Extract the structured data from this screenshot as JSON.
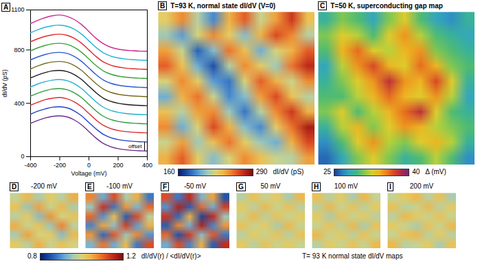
{
  "chart_data": [
    {
      "panel": "A",
      "type": "line",
      "xlabel": "Voltage (mV)",
      "ylabel": "dI/dV (pS)",
      "x": [
        -400,
        -350,
        -300,
        -250,
        -200,
        -150,
        -100,
        -50,
        0,
        50,
        100,
        150,
        200,
        250,
        300,
        350,
        400
      ],
      "xlim": [
        -400,
        400
      ],
      "xticks": [
        -400,
        -200,
        0,
        200,
        400
      ],
      "ylim": [
        0,
        1100
      ],
      "yticks": [
        0,
        400,
        800,
        1100
      ],
      "annotations": [
        "offset"
      ],
      "series": [
        {
          "color": "#6b2d8f",
          "values": [
            250,
            272,
            290,
            302,
            306,
            298,
            275,
            238,
            188,
            138,
            98,
            74,
            60,
            52,
            47,
            44,
            42
          ]
        },
        {
          "color": "#2340c8",
          "values": [
            318,
            341,
            358,
            371,
            374,
            366,
            343,
            306,
            256,
            207,
            166,
            142,
            128,
            120,
            115,
            112,
            110
          ]
        },
        {
          "color": "#d8282a",
          "values": [
            386,
            408,
            427,
            438,
            443,
            434,
            411,
            374,
            324,
            274,
            234,
            210,
            196,
            188,
            183,
            180,
            178
          ]
        },
        {
          "color": "#2e9a3a",
          "values": [
            454,
            476,
            494,
            507,
            510,
            502,
            479,
            442,
            392,
            342,
            302,
            278,
            264,
            256,
            251,
            248,
            246
          ]
        },
        {
          "color": "#20b0d0",
          "values": [
            522,
            545,
            562,
            574,
            578,
            570,
            547,
            510,
            460,
            410,
            370,
            346,
            332,
            324,
            319,
            316,
            314
          ]
        },
        {
          "color": "#1a1a1a",
          "values": [
            590,
            612,
            630,
            643,
            646,
            638,
            615,
            578,
            528,
            478,
            438,
            414,
            400,
            392,
            387,
            384,
            382
          ]
        },
        {
          "color": "#7a6a20",
          "values": [
            658,
            680,
            699,
            710,
            714,
            706,
            683,
            646,
            596,
            546,
            506,
            482,
            468,
            460,
            455,
            452,
            450
          ]
        },
        {
          "color": "#2a5ad8",
          "values": [
            726,
            748,
            766,
            778,
            782,
            774,
            751,
            714,
            664,
            614,
            574,
            550,
            536,
            528,
            523,
            520,
            518
          ]
        },
        {
          "color": "#36a336",
          "values": [
            794,
            816,
            834,
            846,
            850,
            842,
            819,
            782,
            732,
            682,
            642,
            618,
            604,
            596,
            591,
            588,
            586
          ]
        },
        {
          "color": "#e02a2a",
          "values": [
            862,
            884,
            902,
            914,
            918,
            910,
            887,
            850,
            800,
            750,
            710,
            686,
            672,
            664,
            659,
            656,
            654
          ]
        },
        {
          "color": "#1fb5d8",
          "values": [
            930,
            952,
            970,
            982,
            986,
            978,
            955,
            918,
            868,
            818,
            778,
            754,
            740,
            732,
            727,
            724,
            722
          ]
        },
        {
          "color": "#d0288f",
          "values": [
            998,
            1022,
            1042,
            1056,
            1062,
            1052,
            1028,
            990,
            938,
            886,
            846,
            820,
            806,
            798,
            794,
            791,
            790
          ]
        }
      ]
    },
    {
      "panel": "B",
      "type": "heatmap",
      "title": "T=93 K, normal state dI/dV (V=0)",
      "cells": [
        [
          230,
          250,
          215,
          190,
          240,
          260,
          220,
          245,
          270,
          235
        ],
        [
          210,
          195,
          225,
          250,
          230,
          205,
          240,
          265,
          250,
          215
        ],
        [
          245,
          220,
          180,
          205,
          255,
          235,
          200,
          225,
          240,
          260
        ],
        [
          260,
          235,
          200,
          175,
          215,
          250,
          230,
          210,
          255,
          275
        ],
        [
          225,
          250,
          230,
          195,
          185,
          225,
          260,
          240,
          220,
          250
        ],
        [
          200,
          240,
          255,
          220,
          190,
          205,
          245,
          265,
          235,
          215
        ],
        [
          235,
          215,
          245,
          250,
          210,
          185,
          215,
          250,
          270,
          240
        ],
        [
          250,
          200,
          225,
          265,
          240,
          205,
          190,
          230,
          255,
          280
        ],
        [
          220,
          245,
          210,
          235,
          255,
          230,
          210,
          200,
          240,
          265
        ],
        [
          240,
          260,
          230,
          205,
          225,
          250,
          235,
          220,
          215,
          245
        ]
      ],
      "colorbar": {
        "label": "dI/dV (pS)",
        "range": [
          160,
          290
        ],
        "ticks": [
          160,
          290
        ]
      }
    },
    {
      "panel": "C",
      "type": "heatmap",
      "title": "T=50 K, superconducting gap map",
      "cells": [
        [
          29,
          31,
          30,
          28,
          31,
          33,
          30,
          28,
          27,
          29
        ],
        [
          31,
          33,
          32,
          30,
          33,
          35,
          32,
          30,
          29,
          28
        ],
        [
          30,
          34,
          36,
          33,
          32,
          34,
          35,
          31,
          30,
          29
        ],
        [
          28,
          32,
          35,
          37,
          34,
          33,
          36,
          34,
          31,
          30
        ],
        [
          29,
          31,
          33,
          35,
          38,
          35,
          34,
          37,
          33,
          29
        ],
        [
          30,
          30,
          32,
          34,
          36,
          34,
          33,
          35,
          32,
          28
        ],
        [
          31,
          33,
          30,
          32,
          34,
          36,
          38,
          33,
          30,
          29
        ],
        [
          29,
          32,
          34,
          31,
          33,
          35,
          34,
          32,
          31,
          30
        ],
        [
          27,
          30,
          33,
          35,
          32,
          31,
          33,
          34,
          32,
          29
        ],
        [
          26,
          28,
          31,
          33,
          31,
          29,
          30,
          32,
          30,
          27
        ]
      ],
      "colorbar": {
        "label": "Δ (mV)",
        "range": [
          25,
          40
        ],
        "ticks": [
          25,
          40
        ]
      }
    },
    {
      "panel": "D",
      "type": "heatmap",
      "title": "-200 mV",
      "cells": [
        [
          0.98,
          1.04,
          0.96,
          1.02,
          0.97,
          1.05
        ],
        [
          1.03,
          0.95,
          1.06,
          0.98,
          1.04,
          0.96
        ],
        [
          0.97,
          1.02,
          0.94,
          1.07,
          0.99,
          1.03
        ],
        [
          1.05,
          0.98,
          1.03,
          0.95,
          1.08,
          0.97
        ],
        [
          0.96,
          1.06,
          0.99,
          1.02,
          0.94,
          1.04
        ],
        [
          1.02,
          0.97,
          1.05,
          0.98,
          1.03,
          0.99
        ]
      ]
    },
    {
      "panel": "E",
      "type": "heatmap",
      "title": "-100 mV",
      "cells": [
        [
          1.08,
          0.92,
          1.12,
          0.96,
          1.05,
          0.88
        ],
        [
          0.95,
          1.14,
          0.88,
          1.07,
          0.93,
          1.1
        ],
        [
          1.1,
          0.9,
          1.04,
          0.86,
          1.12,
          0.97
        ],
        [
          0.89,
          1.06,
          0.94,
          1.13,
          0.91,
          1.05
        ],
        [
          1.07,
          0.87,
          1.11,
          0.95,
          1.08,
          0.9
        ],
        [
          0.93,
          1.09,
          0.92,
          1.04,
          0.88,
          1.12
        ]
      ]
    },
    {
      "panel": "F",
      "type": "heatmap",
      "title": "-50 mV",
      "cells": [
        [
          1.12,
          0.88,
          1.15,
          0.93,
          1.06,
          0.85
        ],
        [
          0.9,
          1.16,
          0.86,
          1.1,
          0.92,
          1.13
        ],
        [
          1.14,
          0.87,
          1.05,
          0.84,
          1.15,
          0.95
        ],
        [
          0.86,
          1.08,
          0.92,
          1.16,
          0.89,
          1.07
        ],
        [
          1.1,
          0.85,
          1.13,
          0.94,
          1.11,
          0.88
        ],
        [
          0.92,
          1.12,
          0.89,
          1.05,
          0.86,
          1.15
        ]
      ]
    },
    {
      "panel": "G",
      "type": "heatmap",
      "title": "50 mV",
      "cells": [
        [
          0.97,
          1.03,
          0.98,
          1.02,
          0.96,
          1.04
        ],
        [
          1.02,
          0.97,
          1.04,
          0.98,
          1.03,
          0.97
        ],
        [
          0.98,
          1.04,
          0.97,
          1.03,
          0.98,
          1.02
        ],
        [
          1.03,
          0.98,
          1.02,
          0.96,
          1.04,
          0.98
        ],
        [
          0.97,
          1.02,
          0.98,
          1.03,
          0.97,
          1.03
        ],
        [
          1.02,
          0.97,
          1.03,
          0.98,
          1.02,
          0.98
        ]
      ]
    },
    {
      "panel": "H",
      "type": "heatmap",
      "title": "100 mV",
      "cells": [
        [
          1.03,
          0.97,
          1.02,
          0.96,
          1.04,
          0.98
        ],
        [
          0.97,
          1.04,
          0.98,
          1.03,
          0.97,
          1.02
        ],
        [
          1.02,
          0.96,
          1.03,
          0.98,
          1.02,
          0.97
        ],
        [
          0.98,
          1.03,
          0.97,
          1.04,
          0.96,
          1.03
        ],
        [
          1.04,
          0.98,
          1.02,
          0.97,
          1.03,
          0.98
        ],
        [
          0.97,
          1.02,
          0.98,
          1.03,
          0.98,
          1.04
        ]
      ]
    },
    {
      "panel": "I",
      "type": "heatmap",
      "title": "200 mV",
      "cells": [
        [
          0.98,
          1.02,
          1.04,
          0.97,
          1.03,
          0.96
        ],
        [
          1.03,
          0.97,
          0.98,
          1.04,
          0.97,
          1.02
        ],
        [
          0.97,
          1.04,
          1.02,
          0.98,
          1.03,
          0.98
        ],
        [
          1.02,
          0.98,
          0.96,
          1.03,
          0.98,
          1.04
        ],
        [
          0.98,
          1.03,
          1.04,
          0.97,
          1.02,
          0.97
        ],
        [
          1.04,
          0.97,
          0.98,
          1.02,
          0.96,
          1.03
        ]
      ]
    },
    {
      "type": "colorbar",
      "label": "dI/dV(r) / <dI/dV(r)>",
      "range": [
        0.8,
        1.2
      ],
      "ticks": [
        0.8,
        1.2
      ],
      "caption": "T= 93 K normal state dI/dV maps"
    }
  ]
}
